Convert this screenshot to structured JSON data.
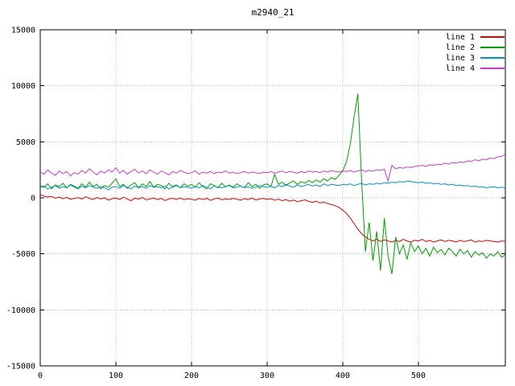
{
  "window": {
    "title": "m2940_21"
  },
  "chart_data": {
    "type": "line",
    "title": "m2940_21",
    "xlabel": "",
    "ylabel": "",
    "xlim": [
      0,
      615
    ],
    "ylim": [
      -15000,
      15000
    ],
    "x_ticks": [
      0,
      100,
      200,
      300,
      400,
      500
    ],
    "y_ticks": [
      -15000,
      -10000,
      -5000,
      0,
      5000,
      10000,
      15000
    ],
    "grid": "dotted",
    "legend_position": "top-right-inside",
    "x_step": 5,
    "colors": {
      "background": "#ffffff",
      "border": "#000000",
      "grid": "#b4b4b4",
      "text": "#000000"
    },
    "series": [
      {
        "name": "line 1",
        "color": "#dd0000",
        "values": [
          300,
          150,
          80,
          120,
          -30,
          60,
          -80,
          40,
          -120,
          -60,
          20,
          -100,
          90,
          -40,
          -150,
          30,
          -90,
          10,
          -200,
          -80,
          -20,
          -150,
          60,
          -100,
          -250,
          -30,
          -120,
          40,
          -180,
          -90,
          -30,
          -160,
          -60,
          -240,
          -100,
          -40,
          -140,
          -20,
          -160,
          -80,
          -120,
          -200,
          -60,
          -160,
          -40,
          -220,
          -100,
          -30,
          -170,
          -90,
          -150,
          -50,
          -130,
          -210,
          -70,
          -150,
          -30,
          -190,
          -110,
          -60,
          -140,
          -80,
          -200,
          -120,
          -260,
          -160,
          -300,
          -200,
          -340,
          -260,
          -180,
          -320,
          -400,
          -300,
          -460,
          -380,
          -520,
          -600,
          -700,
          -850,
          -1100,
          -1400,
          -1800,
          -2300,
          -2800,
          -3200,
          -3500,
          -3700,
          -3850,
          -3700,
          -3900,
          -3750,
          -3850,
          -3950,
          -3800,
          -3900,
          -3700,
          -3850,
          -3950,
          -3800,
          -3850,
          -3700,
          -3900,
          -3800,
          -3950,
          -3850,
          -3750,
          -3900,
          -3800,
          -3850,
          -3950,
          -3800,
          -3900,
          -3850,
          -3750,
          -3950,
          -3850,
          -3900,
          -3800,
          -3850,
          -3900,
          -3950,
          -3850,
          -3900
        ]
      },
      {
        "name": "line 2",
        "color": "#00a000",
        "values": [
          1100,
          950,
          1250,
          800,
          1150,
          1000,
          1300,
          900,
          1200,
          1050,
          850,
          1250,
          950,
          1400,
          1000,
          1200,
          800,
          1100,
          950,
          1300,
          1700,
          1000,
          1200,
          850,
          1150,
          1350,
          900,
          1250,
          1000,
          1450,
          950,
          1200,
          1100,
          800,
          1300,
          1000,
          1150,
          900,
          1250,
          1050,
          1200,
          950,
          1350,
          1000,
          800,
          1250,
          1100,
          900,
          1300,
          1000,
          1150,
          950,
          1250,
          1050,
          900,
          1350,
          1000,
          1200,
          850,
          1150,
          1250,
          1000,
          2100,
          1200,
          1400,
          1100,
          1350,
          1500,
          1200,
          1450,
          1300,
          1550,
          1350,
          1600,
          1400,
          1700,
          1500,
          1800,
          1650,
          2000,
          2400,
          3200,
          4800,
          7200,
          9300,
          1500,
          -4800,
          -2200,
          -5600,
          -3000,
          -6500,
          -1800,
          -5200,
          -6800,
          -3500,
          -5000,
          -4200,
          -5500,
          -4000,
          -4800,
          -4300,
          -5000,
          -4500,
          -5200,
          -4400,
          -4900,
          -4600,
          -5100,
          -4500,
          -4800,
          -5200,
          -4600,
          -5000,
          -4700,
          -5300,
          -4800,
          -5100,
          -4900,
          -5400,
          -5000,
          -5200,
          -4800,
          -5300,
          -5100
        ]
      },
      {
        "name": "line 3",
        "color": "#0090c8",
        "values": [
          900,
          1050,
          800,
          950,
          1100,
          850,
          1000,
          900,
          1150,
          950,
          800,
          1050,
          900,
          1100,
          950,
          850,
          1000,
          900,
          700,
          950,
          1000,
          850,
          1100,
          950,
          800,
          1050,
          900,
          1000,
          850,
          1100,
          950,
          1000,
          900,
          1050,
          800,
          950,
          1100,
          900,
          1000,
          950,
          850,
          1000,
          900,
          1100,
          950,
          800,
          1050,
          950,
          900,
          1000,
          1100,
          900,
          950,
          1050,
          900,
          1000,
          850,
          950,
          1100,
          1000,
          950,
          1050,
          900,
          1100,
          1000,
          1200,
          1050,
          950,
          1150,
          1000,
          1100,
          1200,
          1050,
          1150,
          1000,
          1250,
          1100,
          1200,
          1150,
          1100,
          1200,
          1150,
          1250,
          1100,
          1200,
          1300,
          1150,
          1250,
          1200,
          1300,
          1250,
          1350,
          1300,
          1400,
          1350,
          1450,
          1400,
          1500,
          1450,
          1400,
          1350,
          1400,
          1300,
          1350,
          1250,
          1300,
          1200,
          1250,
          1150,
          1200,
          1100,
          1150,
          1050,
          1100,
          1000,
          1050,
          950,
          1000,
          900,
          950,
          1000,
          900,
          950,
          900
        ]
      },
      {
        "name": "line 4",
        "color": "#c83cc8",
        "values": [
          2300,
          2100,
          2500,
          2200,
          2000,
          2400,
          2150,
          2350,
          1950,
          2250,
          2100,
          2450,
          2200,
          2600,
          2300,
          2050,
          2400,
          2200,
          2500,
          2300,
          2700,
          2200,
          2450,
          2100,
          2350,
          2550,
          2200,
          2400,
          2150,
          2500,
          2300,
          2100,
          2400,
          2250,
          2050,
          2350,
          2200,
          2450,
          2300,
          2150,
          2250,
          2400,
          2100,
          2300,
          2200,
          2350,
          2150,
          2300,
          2250,
          2400,
          2200,
          2300,
          2150,
          2250,
          2350,
          2200,
          2300,
          2250,
          2150,
          2300,
          2250,
          2350,
          2200,
          2300,
          2400,
          2250,
          2350,
          2300,
          2200,
          2350,
          2250,
          2400,
          2300,
          2350,
          2250,
          2400,
          2300,
          2450,
          2350,
          2300,
          2400,
          2350,
          2450,
          2300,
          2400,
          2500,
          2350,
          2450,
          2400,
          2500,
          2450,
          2550,
          1500,
          2900,
          2600,
          2700,
          2650,
          2750,
          2700,
          2800,
          2850,
          2900,
          2800,
          2950,
          2900,
          3000,
          2950,
          3100,
          3000,
          3150,
          3100,
          3200,
          3150,
          3300,
          3250,
          3400,
          3300,
          3450,
          3400,
          3550,
          3500,
          3650,
          3700,
          3900
        ]
      }
    ]
  }
}
